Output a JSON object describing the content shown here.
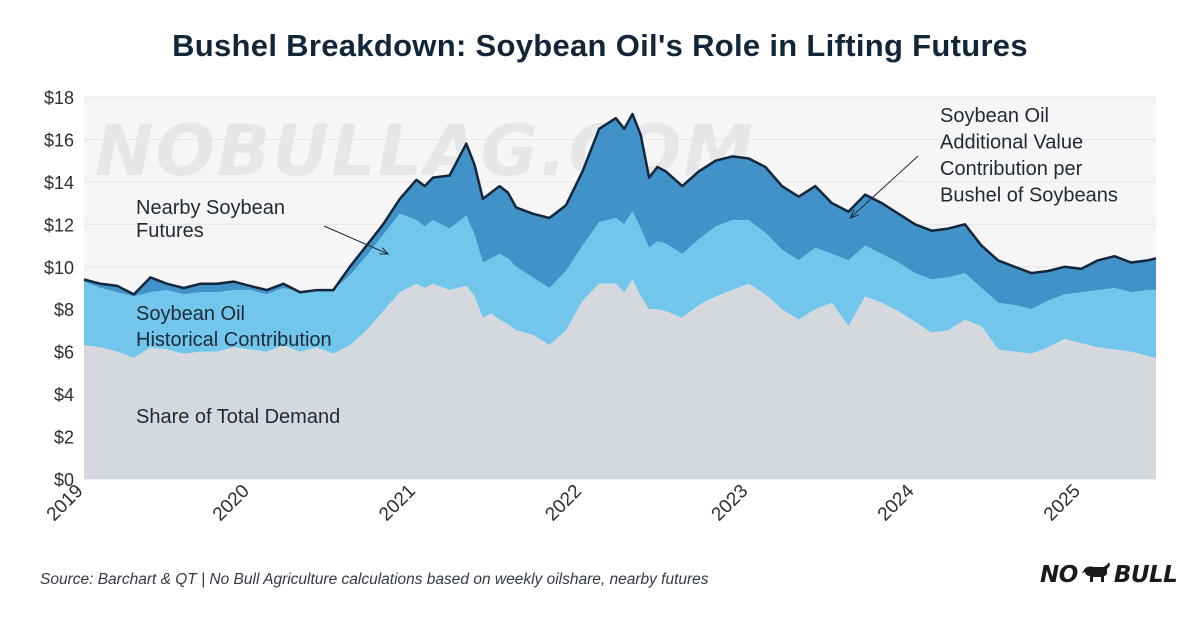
{
  "title": "Bushel Breakdown: Soybean Oil's Role in Lifting Futures",
  "source": "Source: Barchart & QT | No Bull Agriculture calculations based on weekly oilshare, nearby futures",
  "watermark": "NOBULLAG.COM",
  "logo": {
    "left": "NO",
    "right": "BULL",
    "icon": "bull-icon"
  },
  "colors": {
    "demand": "#d5d9dd",
    "historical": "#72c6ec",
    "additional": "#4192c8",
    "futures_line": "#13263c",
    "grid": "#e6e6e6"
  },
  "chart_data": {
    "type": "area",
    "title": "Bushel Breakdown: Soybean Oil's Role in Lifting Futures",
    "xlabel": "",
    "ylabel": "",
    "x_unit": "year (fractional)",
    "xlim": [
      2019.0,
      2025.45
    ],
    "ylim": [
      0,
      18
    ],
    "y_ticks": [
      0,
      2,
      4,
      6,
      8,
      10,
      12,
      14,
      16,
      18
    ],
    "y_tick_labels": [
      "$0",
      "$2",
      "$4",
      "$6",
      "$8",
      "$10",
      "$12",
      "$14",
      "$16",
      "$18"
    ],
    "x_ticks": [
      2019,
      2020,
      2021,
      2022,
      2023,
      2024,
      2025
    ],
    "x_tick_labels": [
      "2019",
      "2020",
      "2021",
      "2022",
      "2023",
      "2024",
      "2025"
    ],
    "grid": "horizontal",
    "annotations": [
      {
        "text": "Nearby Soybean Futures",
        "lines": [
          "Nearby Soybean",
          "Futures"
        ],
        "points_to": [
          2020.83,
          10.6
        ]
      },
      {
        "text": "Soybean Oil Additional Value Contribution per Bushel of Soybeans",
        "lines": [
          "Soybean Oil",
          "Additional Value",
          "Contribution per",
          "Bushel of Soybeans"
        ],
        "points_to": [
          2023.61,
          12.3
        ]
      },
      {
        "text": "Soybean Oil Historical Contribution",
        "lines": [
          "Soybean Oil",
          "Historical Contribution"
        ]
      },
      {
        "text": "Share of Total Demand",
        "lines": [
          "Share of Total Demand"
        ]
      }
    ],
    "x": [
      2019.0,
      2019.1,
      2019.2,
      2019.3,
      2019.4,
      2019.5,
      2019.6,
      2019.7,
      2019.8,
      2019.9,
      2020.0,
      2020.1,
      2020.2,
      2020.3,
      2020.4,
      2020.5,
      2020.6,
      2020.7,
      2020.8,
      2020.9,
      2021.0,
      2021.05,
      2021.1,
      2021.2,
      2021.3,
      2021.35,
      2021.4,
      2021.45,
      2021.5,
      2021.55,
      2021.6,
      2021.7,
      2021.8,
      2021.9,
      2022.0,
      2022.1,
      2022.2,
      2022.25,
      2022.3,
      2022.35,
      2022.4,
      2022.45,
      2022.5,
      2022.6,
      2022.7,
      2022.8,
      2022.9,
      2023.0,
      2023.1,
      2023.2,
      2023.3,
      2023.4,
      2023.5,
      2023.6,
      2023.7,
      2023.8,
      2023.9,
      2024.0,
      2024.1,
      2024.2,
      2024.3,
      2024.4,
      2024.5,
      2024.6,
      2024.7,
      2024.8,
      2024.9,
      2025.0,
      2025.1,
      2025.2,
      2025.3,
      2025.4,
      2025.45
    ],
    "series": [
      {
        "name": "Nearby Soybean Futures",
        "role": "line",
        "values": [
          9.4,
          9.2,
          9.1,
          8.7,
          9.5,
          9.2,
          9.0,
          9.2,
          9.2,
          9.3,
          9.1,
          8.9,
          9.2,
          8.8,
          8.9,
          8.9,
          10.0,
          11.0,
          12.0,
          13.2,
          14.1,
          13.8,
          14.2,
          14.3,
          15.8,
          14.8,
          13.2,
          13.5,
          13.8,
          13.5,
          12.8,
          12.5,
          12.3,
          12.9,
          14.5,
          16.5,
          17.0,
          16.5,
          17.2,
          16.2,
          14.2,
          14.7,
          14.5,
          13.8,
          14.5,
          15.0,
          15.2,
          15.1,
          14.7,
          13.8,
          13.3,
          13.8,
          13.0,
          12.6,
          13.4,
          13.0,
          12.5,
          12.0,
          11.7,
          11.8,
          12.0,
          11.0,
          10.3,
          10.0,
          9.7,
          9.8,
          10.0,
          9.9,
          10.3,
          10.5,
          10.2,
          10.3,
          10.4
        ]
      },
      {
        "name": "Soybean Oil Historical Contribution (cumulative top)",
        "role": "band",
        "values": [
          9.3,
          9.0,
          8.8,
          8.6,
          8.8,
          8.9,
          8.7,
          8.8,
          8.8,
          8.9,
          8.9,
          8.7,
          9.0,
          8.8,
          8.9,
          8.9,
          9.6,
          10.5,
          11.5,
          12.5,
          12.2,
          11.9,
          12.2,
          11.8,
          12.4,
          11.5,
          10.2,
          10.4,
          10.6,
          10.4,
          10.0,
          9.5,
          9.0,
          9.8,
          11.0,
          12.1,
          12.3,
          12.0,
          12.6,
          11.8,
          10.9,
          11.2,
          11.1,
          10.6,
          11.3,
          11.9,
          12.2,
          12.2,
          11.6,
          10.8,
          10.3,
          10.9,
          10.6,
          10.3,
          11.0,
          10.6,
          10.2,
          9.7,
          9.4,
          9.5,
          9.7,
          9.0,
          8.3,
          8.2,
          8.0,
          8.4,
          8.7,
          8.8,
          8.9,
          9.0,
          8.8,
          8.9,
          8.9
        ]
      },
      {
        "name": "Share of Total Demand",
        "role": "base",
        "values": [
          6.3,
          6.2,
          6.0,
          5.7,
          6.2,
          6.1,
          5.9,
          6.0,
          6.0,
          6.2,
          6.1,
          6.0,
          6.3,
          6.0,
          6.2,
          5.9,
          6.3,
          7.0,
          7.9,
          8.8,
          9.2,
          9.0,
          9.2,
          8.9,
          9.1,
          8.6,
          7.6,
          7.8,
          7.5,
          7.3,
          7.0,
          6.8,
          6.3,
          7.0,
          8.4,
          9.2,
          9.2,
          8.8,
          9.4,
          8.6,
          8.0,
          8.0,
          7.9,
          7.6,
          8.2,
          8.6,
          8.9,
          9.2,
          8.7,
          8.0,
          7.5,
          8.0,
          8.3,
          7.2,
          8.6,
          8.3,
          7.9,
          7.4,
          6.9,
          7.0,
          7.5,
          7.2,
          6.1,
          6.0,
          5.9,
          6.2,
          6.6,
          6.4,
          6.2,
          6.1,
          6.0,
          5.8,
          5.7
        ]
      }
    ]
  }
}
